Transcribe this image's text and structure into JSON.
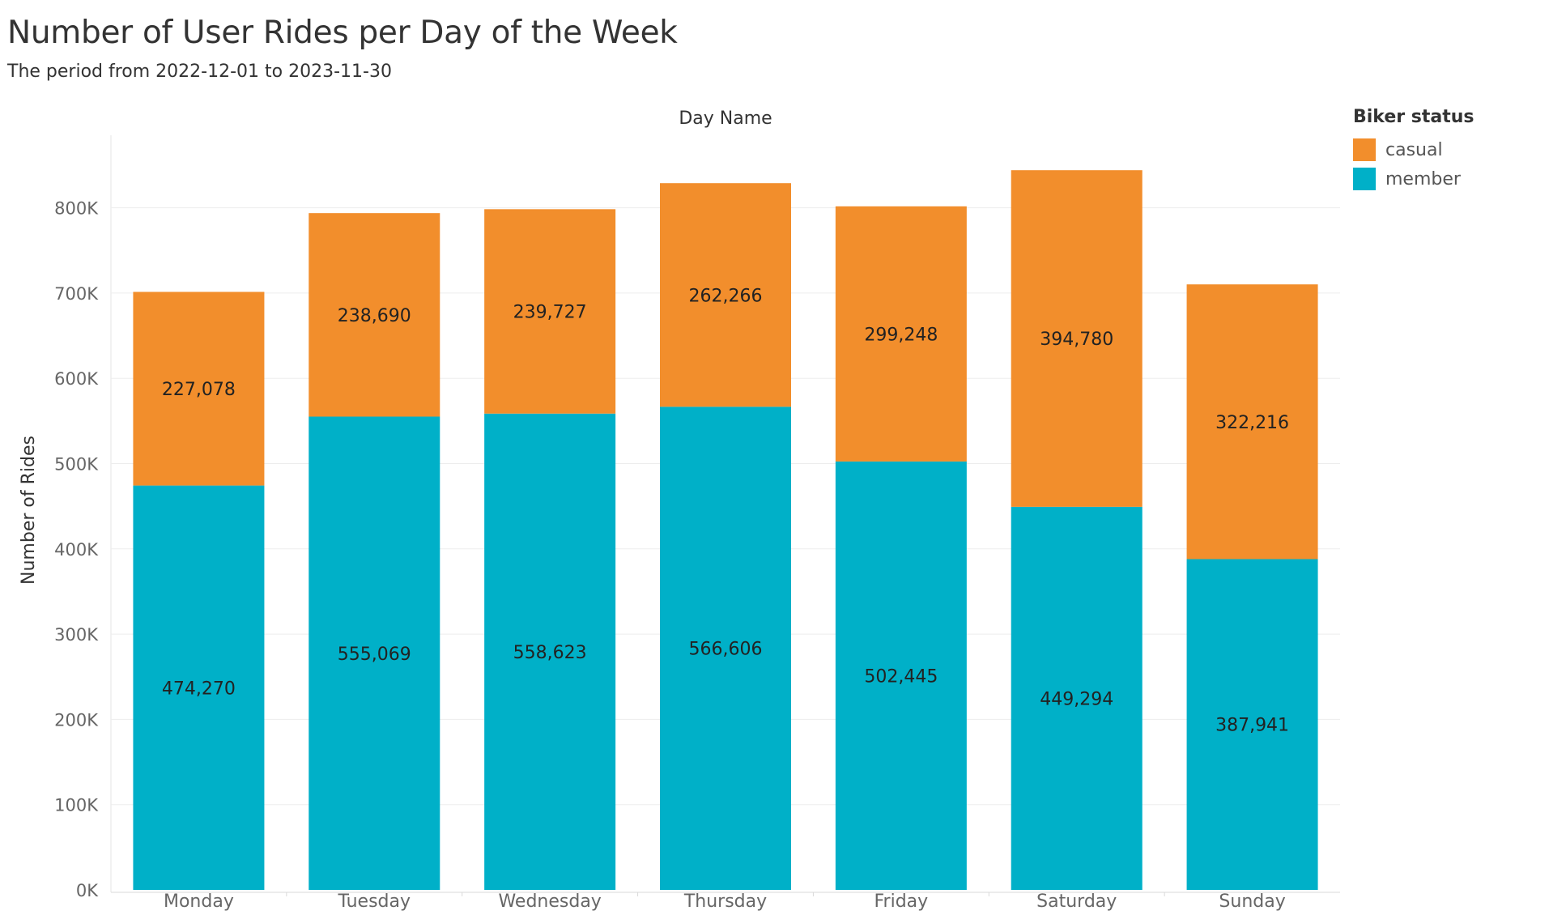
{
  "chart_data": {
    "type": "bar",
    "stacked": true,
    "title": "Number of User Rides per Day of the Week",
    "subtitle": "The period from 2022-12-01 to 2023-11-30",
    "column_header": "Day Name",
    "ylabel": "Number of Rides",
    "ylim": [
      0,
      880000
    ],
    "yticks": [
      0,
      100000,
      200000,
      300000,
      400000,
      500000,
      600000,
      700000,
      800000
    ],
    "ytick_labels": [
      "0K",
      "100K",
      "200K",
      "300K",
      "400K",
      "500K",
      "600K",
      "700K",
      "800K"
    ],
    "grid": true,
    "legend_placement": "top-right",
    "categories": [
      "Monday",
      "Tuesday",
      "Wednesday",
      "Thursday",
      "Friday",
      "Saturday",
      "Sunday"
    ],
    "series": [
      {
        "name": "member",
        "color": "#00b0c8",
        "values": [
          474270,
          555069,
          558623,
          566606,
          502445,
          449294,
          387941
        ],
        "labels": [
          "474,270",
          "555,069",
          "558,623",
          "566,606",
          "502,445",
          "449,294",
          "387,941"
        ]
      },
      {
        "name": "casual",
        "color": "#f28e2c",
        "values": [
          227078,
          238690,
          239727,
          262266,
          299248,
          394780,
          322216
        ],
        "labels": [
          "227,078",
          "238,690",
          "239,727",
          "262,266",
          "299,248",
          "394,780",
          "322,216"
        ]
      }
    ]
  },
  "legend": {
    "title": "Biker status",
    "items": [
      {
        "label": "casual",
        "color": "#f28e2c"
      },
      {
        "label": "member",
        "color": "#00b0c8"
      }
    ]
  }
}
